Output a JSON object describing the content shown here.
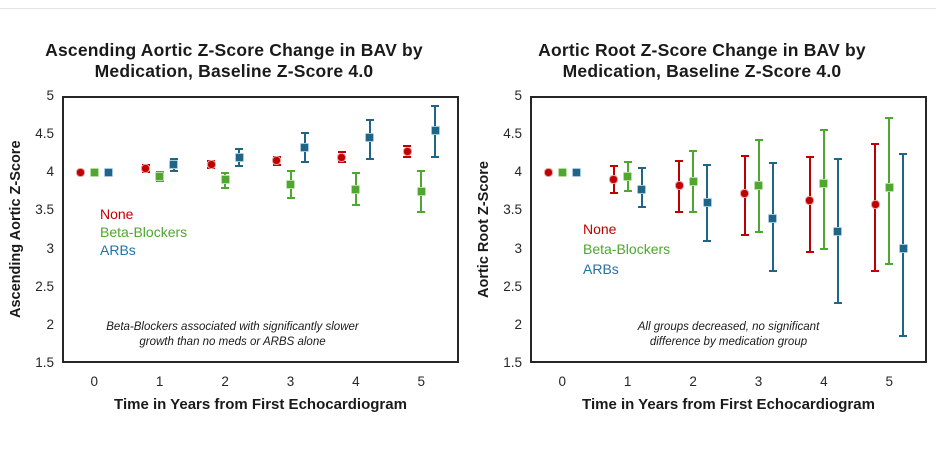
{
  "page": {
    "background": "#ffffff",
    "top_rule_color": "#e4e4e4"
  },
  "colors": {
    "none": "#c00000",
    "none_edge": "#e0a2a2",
    "beta_blockers": "#4ea72e",
    "beta_blockers_edge": "#b6dca2",
    "arbs": "#1f6586",
    "arbs_edge": "#a3c7e0",
    "arbs_legend_text": "#2272a3",
    "axis_text": "#262626",
    "box_border": "#262626",
    "title_text": "#1a1a1a"
  },
  "chart_data": [
    {
      "type": "scatter",
      "title": "Ascending Aortic Z-Score Change in BAV by Medication, Baseline Z-Score 4.0",
      "title_lines": [
        "Ascending Aortic Z-Score Change in BAV by",
        "Medication, Baseline Z-Score 4.0"
      ],
      "ylabel": "Ascending Aortic Z-Score",
      "xlabel": "Time in Years from First Echocardiogram",
      "x_categories": [
        "0",
        "1",
        "2",
        "3",
        "4",
        "5"
      ],
      "ylim": [
        1.5,
        5
      ],
      "ytick_labels": [
        "5",
        "4.5",
        "4",
        "3.5",
        "3",
        "2.5",
        "2",
        "1.5"
      ],
      "grid": false,
      "legend_position": "inside-upper-left",
      "legend": [
        "None",
        "Beta-Blockers",
        "ARBs"
      ],
      "annotation": "Beta-Blockers associated with significantly slower growth than no meds or ARBS alone",
      "annotation_lines": [
        "Beta-Blockers associated with significantly slower",
        "growth than no meds or ARBS alone"
      ],
      "series": [
        {
          "name": "None",
          "color_key": "none",
          "values": [
            4.0,
            4.05,
            4.1,
            4.15,
            4.2,
            4.27
          ],
          "err_low": [
            null,
            4.0,
            4.05,
            4.1,
            4.14,
            4.2
          ],
          "err_high": [
            null,
            4.1,
            4.15,
            4.2,
            4.26,
            4.34
          ]
        },
        {
          "name": "Beta-Blockers",
          "color_key": "beta_blockers",
          "values": [
            4.0,
            3.94,
            3.9,
            3.84,
            3.78,
            3.75
          ],
          "err_low": [
            null,
            3.88,
            3.8,
            3.66,
            3.57,
            3.48
          ],
          "err_high": [
            null,
            4.01,
            3.99,
            4.02,
            3.99,
            4.02
          ]
        },
        {
          "name": "ARBs",
          "color_key": "arbs",
          "values": [
            4.0,
            4.1,
            4.2,
            4.33,
            4.45,
            4.55
          ],
          "err_low": [
            null,
            4.02,
            4.08,
            4.13,
            4.18,
            4.2
          ],
          "err_high": [
            null,
            4.18,
            4.31,
            4.52,
            4.69,
            4.87
          ]
        }
      ]
    },
    {
      "type": "scatter",
      "title": "Aortic Root Z-Score Change in BAV by Medication, Baseline Z-Score 4.0",
      "title_lines": [
        "Aortic Root Z-Score Change in BAV by",
        "Medication, Baseline Z-Score 4.0"
      ],
      "ylabel": "Aortic Root Z-Score",
      "xlabel": "Time in Years from First Echocardiogram",
      "x_categories": [
        "0",
        "1",
        "2",
        "3",
        "4",
        "5"
      ],
      "ylim": [
        1.5,
        5
      ],
      "ytick_labels": [
        "5",
        "4.5",
        "4",
        "3.5",
        "3",
        "2.5",
        "2",
        "1.5"
      ],
      "grid": false,
      "legend_position": "inside-upper-left",
      "legend": [
        "None",
        "Beta-Blockers",
        "ARBs"
      ],
      "annotation": "All groups decreased, no significant difference by medication group",
      "annotation_lines": [
        "All groups decreased, no significant",
        "difference by medication group"
      ],
      "series": [
        {
          "name": "None",
          "color_key": "none",
          "values": [
            4.0,
            3.9,
            3.83,
            3.72,
            3.63,
            3.58
          ],
          "err_low": [
            null,
            3.73,
            3.48,
            3.18,
            2.95,
            2.7
          ],
          "err_high": [
            null,
            4.08,
            4.15,
            4.21,
            4.2,
            4.37
          ]
        },
        {
          "name": "Beta-Blockers",
          "color_key": "beta_blockers",
          "values": [
            4.0,
            3.95,
            3.88,
            3.83,
            3.85,
            3.8
          ],
          "err_low": [
            null,
            3.76,
            3.48,
            3.22,
            3.0,
            2.8
          ],
          "err_high": [
            null,
            4.13,
            4.28,
            4.42,
            4.56,
            4.71
          ]
        },
        {
          "name": "ARBs",
          "color_key": "arbs",
          "values": [
            4.0,
            3.78,
            3.6,
            3.4,
            3.22,
            3.0
          ],
          "err_low": [
            null,
            3.55,
            3.1,
            2.7,
            2.28,
            1.86
          ],
          "err_high": [
            null,
            4.05,
            4.09,
            4.12,
            4.18,
            4.24
          ]
        }
      ]
    }
  ]
}
